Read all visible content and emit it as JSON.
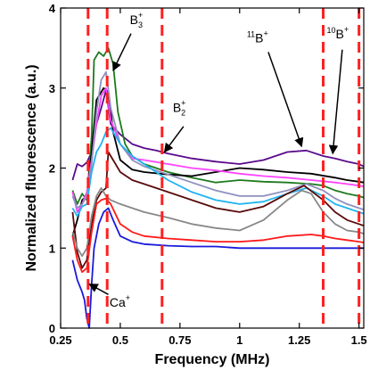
{
  "chart_data": {
    "type": "line",
    "title": "",
    "xlabel": "Frequency (MHz)",
    "ylabel": "Normalized fluorescence (a.u.)",
    "xlim": [
      0.25,
      1.52
    ],
    "ylim": [
      0,
      4
    ],
    "xticks": [
      0.25,
      0.5,
      0.75,
      1,
      1.25,
      1.5
    ],
    "xtick_labels": [
      "0.25",
      "0.5",
      "0.75",
      "1",
      "1.25",
      "1.5"
    ],
    "yticks": [
      0,
      1,
      2,
      3,
      4
    ],
    "ytick_labels": [
      "0",
      "1",
      "2",
      "3",
      "4"
    ],
    "grid": false,
    "legend": "none",
    "vlines": {
      "color": "#ff2020",
      "style": "dashed",
      "x": [
        0.365,
        0.445,
        0.675,
        1.35,
        1.5
      ]
    },
    "annotations": [
      {
        "id": "B3",
        "base": "B",
        "sup": "+",
        "sub": "3",
        "pre": "",
        "text_at": [
          0.54,
          3.8
        ],
        "arrow_from": [
          0.545,
          3.68
        ],
        "arrow_to": [
          0.47,
          3.22
        ]
      },
      {
        "id": "B2",
        "base": "B",
        "sup": "+",
        "sub": "2",
        "pre": "",
        "text_at": [
          0.72,
          2.7
        ],
        "arrow_from": [
          0.765,
          2.52
        ],
        "arrow_to": [
          0.685,
          2.2
        ]
      },
      {
        "id": "B11",
        "base": "B",
        "sup": "+",
        "sub": "",
        "pre": "11",
        "text_at": [
          1.03,
          3.57
        ],
        "arrow_from": [
          1.12,
          3.45
        ],
        "arrow_to": [
          1.26,
          2.27
        ]
      },
      {
        "id": "B10",
        "base": "B",
        "sup": "+",
        "sub": "",
        "pre": "10",
        "text_at": [
          1.365,
          3.62
        ],
        "arrow_from": [
          1.43,
          3.48
        ],
        "arrow_to": [
          1.39,
          2.18
        ]
      },
      {
        "id": "Ca",
        "base": "Ca",
        "sup": "+",
        "sub": "",
        "pre": "",
        "text_at": [
          0.455,
          0.27
        ],
        "arrow_from": [
          0.45,
          0.42
        ],
        "arrow_to": [
          0.37,
          0.55
        ]
      }
    ],
    "series": [
      {
        "color": "#5a0a8c",
        "points": [
          [
            0.3,
            1.85
          ],
          [
            0.32,
            2.05
          ],
          [
            0.34,
            2.02
          ],
          [
            0.36,
            2.07
          ],
          [
            0.38,
            2.2
          ],
          [
            0.4,
            2.55
          ],
          [
            0.42,
            2.75
          ],
          [
            0.44,
            2.97
          ],
          [
            0.46,
            2.55
          ],
          [
            0.5,
            2.42
          ],
          [
            0.55,
            2.3
          ],
          [
            0.6,
            2.25
          ],
          [
            0.65,
            2.22
          ],
          [
            0.7,
            2.18
          ],
          [
            0.8,
            2.12
          ],
          [
            0.9,
            2.08
          ],
          [
            1.0,
            2.05
          ],
          [
            1.1,
            2.1
          ],
          [
            1.2,
            2.2
          ],
          [
            1.28,
            2.22
          ],
          [
            1.35,
            2.15
          ],
          [
            1.4,
            2.12
          ],
          [
            1.45,
            2.08
          ],
          [
            1.5,
            2.05
          ],
          [
            1.52,
            2.02
          ]
        ]
      },
      {
        "color": "#1e7a1e",
        "points": [
          [
            0.3,
            1.72
          ],
          [
            0.32,
            1.55
          ],
          [
            0.34,
            1.68
          ],
          [
            0.36,
            1.6
          ],
          [
            0.38,
            2.4
          ],
          [
            0.39,
            3.35
          ],
          [
            0.41,
            3.45
          ],
          [
            0.43,
            3.4
          ],
          [
            0.45,
            3.5
          ],
          [
            0.46,
            3.4
          ],
          [
            0.47,
            3.3
          ],
          [
            0.49,
            2.7
          ],
          [
            0.52,
            2.3
          ],
          [
            0.55,
            2.15
          ],
          [
            0.6,
            2.05
          ],
          [
            0.7,
            1.95
          ],
          [
            0.8,
            1.88
          ],
          [
            0.9,
            1.82
          ],
          [
            1.0,
            1.85
          ],
          [
            1.1,
            1.83
          ],
          [
            1.2,
            1.82
          ],
          [
            1.3,
            1.8
          ],
          [
            1.35,
            1.78
          ],
          [
            1.4,
            1.72
          ],
          [
            1.45,
            1.68
          ],
          [
            1.5,
            1.65
          ],
          [
            1.52,
            1.63
          ]
        ]
      },
      {
        "color": "#000000",
        "points": [
          [
            0.3,
            1.15
          ],
          [
            0.32,
            1.35
          ],
          [
            0.34,
            1.6
          ],
          [
            0.36,
            1.65
          ],
          [
            0.38,
            2.2
          ],
          [
            0.4,
            2.85
          ],
          [
            0.43,
            3.0
          ],
          [
            0.45,
            2.95
          ],
          [
            0.47,
            2.45
          ],
          [
            0.5,
            2.1
          ],
          [
            0.55,
            1.98
          ],
          [
            0.6,
            1.95
          ],
          [
            0.7,
            1.92
          ],
          [
            0.8,
            1.9
          ],
          [
            0.9,
            1.95
          ],
          [
            1.0,
            2.0
          ],
          [
            1.1,
            1.98
          ],
          [
            1.2,
            1.95
          ],
          [
            1.3,
            1.93
          ],
          [
            1.4,
            1.88
          ],
          [
            1.45,
            1.85
          ],
          [
            1.5,
            1.83
          ],
          [
            1.52,
            1.82
          ]
        ]
      },
      {
        "color": "#ff44ff",
        "points": [
          [
            0.3,
            1.7
          ],
          [
            0.32,
            1.45
          ],
          [
            0.34,
            1.55
          ],
          [
            0.36,
            1.7
          ],
          [
            0.38,
            2.1
          ],
          [
            0.4,
            2.55
          ],
          [
            0.42,
            2.9
          ],
          [
            0.44,
            3.0
          ],
          [
            0.46,
            2.6
          ],
          [
            0.5,
            2.3
          ],
          [
            0.55,
            2.12
          ],
          [
            0.6,
            2.1
          ],
          [
            0.7,
            2.05
          ],
          [
            0.8,
            2.0
          ],
          [
            0.9,
            1.97
          ],
          [
            1.0,
            1.93
          ],
          [
            1.1,
            1.9
          ],
          [
            1.2,
            1.88
          ],
          [
            1.3,
            1.85
          ],
          [
            1.4,
            1.82
          ],
          [
            1.45,
            1.8
          ],
          [
            1.5,
            1.78
          ],
          [
            1.52,
            1.77
          ]
        ]
      },
      {
        "color": "#9090c0",
        "points": [
          [
            0.3,
            1.65
          ],
          [
            0.32,
            1.5
          ],
          [
            0.34,
            1.55
          ],
          [
            0.36,
            1.65
          ],
          [
            0.38,
            2.05
          ],
          [
            0.4,
            2.7
          ],
          [
            0.42,
            3.1
          ],
          [
            0.44,
            3.2
          ],
          [
            0.46,
            2.75
          ],
          [
            0.5,
            2.3
          ],
          [
            0.55,
            2.1
          ],
          [
            0.6,
            2.02
          ],
          [
            0.7,
            1.92
          ],
          [
            0.8,
            1.82
          ],
          [
            0.9,
            1.72
          ],
          [
            1.0,
            1.65
          ],
          [
            1.1,
            1.65
          ],
          [
            1.2,
            1.72
          ],
          [
            1.28,
            1.8
          ],
          [
            1.35,
            1.72
          ],
          [
            1.4,
            1.62
          ],
          [
            1.45,
            1.55
          ],
          [
            1.5,
            1.5
          ],
          [
            1.52,
            1.48
          ]
        ]
      },
      {
        "color": "#1fb4f0",
        "points": [
          [
            0.3,
            1.5
          ],
          [
            0.32,
            1.4
          ],
          [
            0.34,
            1.52
          ],
          [
            0.36,
            1.55
          ],
          [
            0.38,
            1.95
          ],
          [
            0.4,
            2.2
          ],
          [
            0.42,
            2.3
          ],
          [
            0.44,
            2.45
          ],
          [
            0.46,
            2.5
          ],
          [
            0.5,
            2.3
          ],
          [
            0.55,
            2.15
          ],
          [
            0.6,
            2.05
          ],
          [
            0.7,
            1.85
          ],
          [
            0.8,
            1.7
          ],
          [
            0.9,
            1.6
          ],
          [
            1.0,
            1.55
          ],
          [
            1.1,
            1.58
          ],
          [
            1.2,
            1.68
          ],
          [
            1.28,
            1.75
          ],
          [
            1.35,
            1.65
          ],
          [
            1.4,
            1.55
          ],
          [
            1.45,
            1.5
          ],
          [
            1.5,
            1.45
          ],
          [
            1.52,
            1.43
          ]
        ]
      },
      {
        "color": "#5a0a0a",
        "points": [
          [
            0.3,
            1.45
          ],
          [
            0.32,
            0.95
          ],
          [
            0.34,
            0.75
          ],
          [
            0.36,
            0.85
          ],
          [
            0.38,
            1.3
          ],
          [
            0.4,
            1.6
          ],
          [
            0.42,
            1.7
          ],
          [
            0.44,
            1.75
          ],
          [
            0.45,
            2.2
          ],
          [
            0.47,
            2.1
          ],
          [
            0.5,
            1.95
          ],
          [
            0.55,
            1.85
          ],
          [
            0.6,
            1.8
          ],
          [
            0.7,
            1.7
          ],
          [
            0.8,
            1.6
          ],
          [
            0.9,
            1.5
          ],
          [
            1.0,
            1.45
          ],
          [
            1.1,
            1.52
          ],
          [
            1.2,
            1.68
          ],
          [
            1.27,
            1.78
          ],
          [
            1.35,
            1.6
          ],
          [
            1.4,
            1.45
          ],
          [
            1.45,
            1.35
          ],
          [
            1.5,
            1.3
          ],
          [
            1.52,
            1.28
          ]
        ]
      },
      {
        "color": "#888888",
        "points": [
          [
            0.3,
            1.2
          ],
          [
            0.32,
            1.0
          ],
          [
            0.34,
            0.9
          ],
          [
            0.36,
            1.0
          ],
          [
            0.38,
            1.4
          ],
          [
            0.4,
            1.65
          ],
          [
            0.42,
            1.75
          ],
          [
            0.44,
            1.65
          ],
          [
            0.46,
            1.6
          ],
          [
            0.5,
            1.55
          ],
          [
            0.55,
            1.5
          ],
          [
            0.6,
            1.45
          ],
          [
            0.7,
            1.38
          ],
          [
            0.8,
            1.3
          ],
          [
            0.9,
            1.25
          ],
          [
            1.0,
            1.22
          ],
          [
            1.1,
            1.35
          ],
          [
            1.2,
            1.6
          ],
          [
            1.26,
            1.72
          ],
          [
            1.3,
            1.68
          ],
          [
            1.35,
            1.45
          ],
          [
            1.4,
            1.3
          ],
          [
            1.45,
            1.22
          ],
          [
            1.5,
            1.2
          ],
          [
            1.52,
            1.18
          ]
        ]
      },
      {
        "color": "#ff1a1a",
        "points": [
          [
            0.3,
            1.15
          ],
          [
            0.32,
            0.85
          ],
          [
            0.34,
            0.7
          ],
          [
            0.36,
            0.75
          ],
          [
            0.38,
            1.2
          ],
          [
            0.4,
            1.55
          ],
          [
            0.42,
            1.6
          ],
          [
            0.44,
            1.62
          ],
          [
            0.46,
            1.55
          ],
          [
            0.5,
            1.3
          ],
          [
            0.55,
            1.2
          ],
          [
            0.6,
            1.15
          ],
          [
            0.7,
            1.12
          ],
          [
            0.8,
            1.1
          ],
          [
            0.9,
            1.08
          ],
          [
            1.0,
            1.08
          ],
          [
            1.1,
            1.1
          ],
          [
            1.2,
            1.15
          ],
          [
            1.3,
            1.17
          ],
          [
            1.35,
            1.15
          ],
          [
            1.4,
            1.12
          ],
          [
            1.45,
            1.1
          ],
          [
            1.5,
            1.08
          ],
          [
            1.52,
            1.07
          ]
        ]
      },
      {
        "color": "#1a1adc",
        "points": [
          [
            0.3,
            0.85
          ],
          [
            0.32,
            0.6
          ],
          [
            0.34,
            0.45
          ],
          [
            0.35,
            0.35
          ],
          [
            0.36,
            0.12
          ],
          [
            0.37,
            0.0
          ],
          [
            0.38,
            0.55
          ],
          [
            0.39,
            1.0
          ],
          [
            0.41,
            1.3
          ],
          [
            0.43,
            1.45
          ],
          [
            0.45,
            1.5
          ],
          [
            0.47,
            1.35
          ],
          [
            0.5,
            1.15
          ],
          [
            0.55,
            1.08
          ],
          [
            0.6,
            1.05
          ],
          [
            0.7,
            1.03
          ],
          [
            0.8,
            1.02
          ],
          [
            0.9,
            1.02
          ],
          [
            1.0,
            1.0
          ],
          [
            1.1,
            1.0
          ],
          [
            1.2,
            1.0
          ],
          [
            1.3,
            1.0
          ],
          [
            1.4,
            1.0
          ],
          [
            1.5,
            1.0
          ],
          [
            1.52,
            1.0
          ]
        ]
      }
    ]
  }
}
